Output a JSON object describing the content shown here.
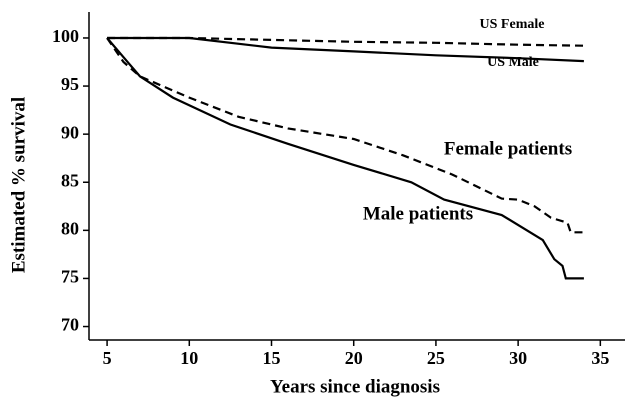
{
  "chart_data": {
    "type": "line",
    "xlabel": "Years since diagnosis",
    "ylabel": "Estimated % survival",
    "xlim": [
      3.9,
      36.5
    ],
    "ylim": [
      68.6,
      102.7
    ],
    "xticks": [
      5,
      10,
      15,
      20,
      25,
      30,
      35
    ],
    "yticks": [
      70,
      75,
      80,
      85,
      90,
      95,
      100
    ],
    "series": [
      {
        "name": "US Female",
        "color": "#000000",
        "style": "dashed",
        "x": [
          5,
          10,
          15,
          20,
          25,
          30,
          34
        ],
        "values": [
          100,
          100,
          99.8,
          99.6,
          99.5,
          99.3,
          99.2
        ]
      },
      {
        "name": "US Male",
        "color": "#000000",
        "style": "solid",
        "x": [
          5,
          10,
          15,
          20,
          25,
          30,
          34
        ],
        "values": [
          100,
          100,
          99,
          98.6,
          98.2,
          97.9,
          97.6
        ]
      },
      {
        "name": "Female patients",
        "color": "#000000",
        "style": "dashed",
        "x": [
          5,
          6,
          7,
          10,
          13,
          16,
          20,
          23,
          26,
          29,
          30,
          31,
          32,
          33,
          33.2,
          34
        ],
        "values": [
          100,
          97.5,
          96,
          93.8,
          91.8,
          90.6,
          89.5,
          87.8,
          85.8,
          83.3,
          83.2,
          82.5,
          81.3,
          80.8,
          79.8,
          79.8
        ]
      },
      {
        "name": "Male patients",
        "color": "#000000",
        "style": "solid",
        "x": [
          5,
          6,
          7,
          9,
          12.5,
          16,
          20,
          23.5,
          25.5,
          29,
          31.5,
          32.2,
          32.7,
          32.9,
          34
        ],
        "values": [
          100,
          98,
          96,
          93.8,
          91,
          89,
          86.8,
          85,
          83.2,
          81.6,
          79,
          77,
          76.3,
          75,
          75
        ]
      }
    ]
  }
}
